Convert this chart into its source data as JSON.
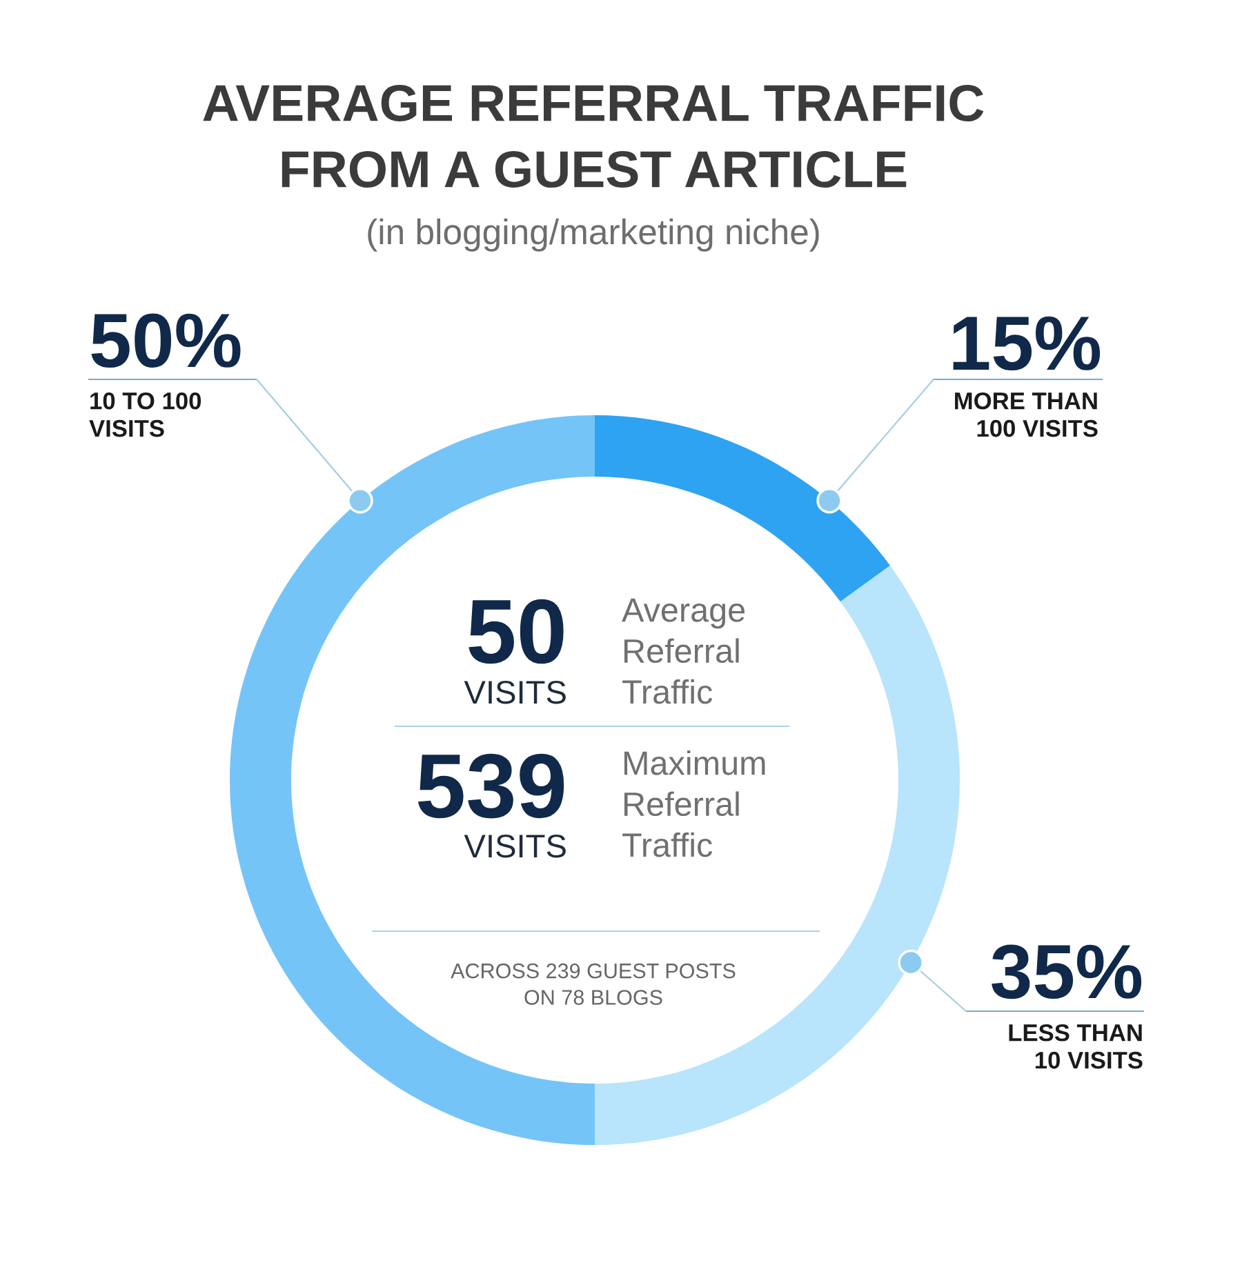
{
  "chart_data": {
    "type": "donut",
    "title": "AVERAGE REFERRAL TRAFFIC\nFROM A GUEST ARTICLE",
    "subtitle": "(in blogging/marketing niche)",
    "categories": [
      "MORE THAN\n100 VISITS",
      "LESS THAN\n10 VISITS",
      "10 TO 100\nVISITS"
    ],
    "values": [
      15,
      35,
      50
    ],
    "colors": [
      "#2ea3f2",
      "#b8e4fc",
      "#74c4f8"
    ],
    "value_labels": [
      "15%",
      "35%",
      "50%"
    ],
    "annotations": [
      "50",
      "VISITS",
      "Average\nReferral\nTraffic",
      "539",
      "VISITS",
      "Maximum\nReferral\nTraffic",
      "ACROSS 239 GUEST POSTS\nON 78 BLOGS"
    ]
  }
}
